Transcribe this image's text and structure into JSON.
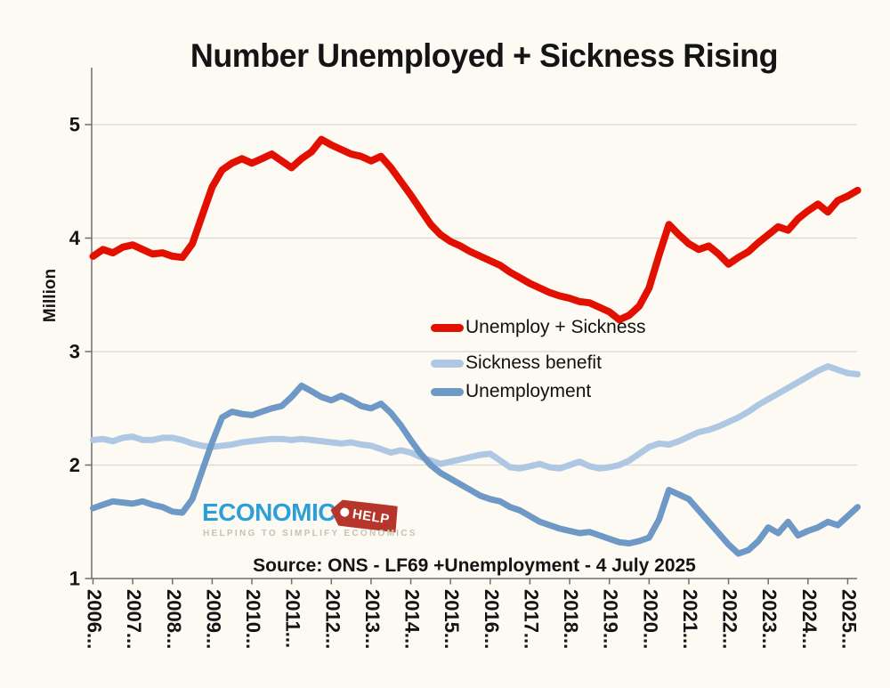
{
  "title": "Number Unemployed + Sickness Rising",
  "source_note": "Source: ONS - LF69 +Unemployment - 4 July 2025",
  "logo": {
    "brand": "ECONOMICS",
    "tag": "HELP",
    "tagline": "HELPING TO SIMPLIFY ECONOMICS",
    "brand_color": "#2d9fd8",
    "tag_color": "#b6362c"
  },
  "colors": {
    "background": "#fcfaf3",
    "axis": "#6e6e6e",
    "gridline": "#dbd8d0",
    "text": "#141414"
  },
  "chart_data": {
    "type": "line",
    "title": "Number Unemployed + Sickness Rising",
    "xlabel": "",
    "ylabel": "Million",
    "ylim": [
      1,
      5.5
    ],
    "yticks": [
      1,
      2,
      3,
      4,
      5
    ],
    "grid": "horizontal",
    "legend_position": "inside center-right, no border",
    "x_tick_labels": [
      "2006...",
      "2007...",
      "2008...",
      "2009...",
      "2010...",
      "2011...",
      "2012...",
      "2013...",
      "2014...",
      "2015...",
      "2016...",
      "2017...",
      "2018...",
      "2019...",
      "2020...",
      "2021...",
      "2022...",
      "2023...",
      "2024...",
      "2025..."
    ],
    "x": [
      2006,
      2006.25,
      2006.5,
      2006.75,
      2007,
      2007.25,
      2007.5,
      2007.75,
      2008,
      2008.25,
      2008.5,
      2008.75,
      2009,
      2009.25,
      2009.5,
      2009.75,
      2010,
      2010.25,
      2010.5,
      2010.75,
      2011,
      2011.25,
      2011.5,
      2011.75,
      2012,
      2012.25,
      2012.5,
      2012.75,
      2013,
      2013.25,
      2013.5,
      2013.75,
      2014,
      2014.25,
      2014.5,
      2014.75,
      2015,
      2015.25,
      2015.5,
      2015.75,
      2016,
      2016.25,
      2016.5,
      2016.75,
      2017,
      2017.25,
      2017.5,
      2017.75,
      2018,
      2018.25,
      2018.5,
      2018.75,
      2019,
      2019.25,
      2019.5,
      2019.75,
      2020,
      2020.25,
      2020.5,
      2020.75,
      2021,
      2021.25,
      2021.5,
      2021.75,
      2022,
      2022.25,
      2022.5,
      2022.75,
      2023,
      2023.25,
      2023.5,
      2023.75,
      2024,
      2024.25,
      2024.5,
      2024.75,
      2025,
      2025.25
    ],
    "series": [
      {
        "name": "Unemploy + Sickness",
        "color": "#e21000",
        "stroke_width": 8,
        "values": [
          3.84,
          3.9,
          3.87,
          3.92,
          3.94,
          3.9,
          3.86,
          3.87,
          3.84,
          3.83,
          3.95,
          4.2,
          4.45,
          4.6,
          4.66,
          4.7,
          4.66,
          4.7,
          4.74,
          4.68,
          4.62,
          4.7,
          4.76,
          4.87,
          4.82,
          4.78,
          4.74,
          4.72,
          4.68,
          4.72,
          4.62,
          4.5,
          4.38,
          4.25,
          4.12,
          4.03,
          3.97,
          3.93,
          3.88,
          3.84,
          3.8,
          3.76,
          3.7,
          3.65,
          3.6,
          3.56,
          3.52,
          3.49,
          3.47,
          3.44,
          3.43,
          3.39,
          3.35,
          3.28,
          3.32,
          3.4,
          3.56,
          3.85,
          4.12,
          4.03,
          3.95,
          3.9,
          3.93,
          3.86,
          3.77,
          3.83,
          3.88,
          3.96,
          4.03,
          4.1,
          4.07,
          4.17,
          4.24,
          4.3,
          4.23,
          4.33,
          4.37,
          4.42
        ]
      },
      {
        "name": "Sickness benefit",
        "color": "#aec7e3",
        "stroke_width": 7,
        "values": [
          2.22,
          2.23,
          2.21,
          2.24,
          2.25,
          2.22,
          2.22,
          2.24,
          2.24,
          2.22,
          2.19,
          2.17,
          2.16,
          2.17,
          2.18,
          2.2,
          2.21,
          2.22,
          2.23,
          2.23,
          2.22,
          2.23,
          2.22,
          2.21,
          2.2,
          2.19,
          2.2,
          2.18,
          2.17,
          2.14,
          2.11,
          2.13,
          2.11,
          2.07,
          2.04,
          2.01,
          2.03,
          2.05,
          2.07,
          2.09,
          2.1,
          2.04,
          1.98,
          1.97,
          1.99,
          2.01,
          1.98,
          1.97,
          2.0,
          2.03,
          1.99,
          1.97,
          1.98,
          2.0,
          2.04,
          2.1,
          2.16,
          2.19,
          2.18,
          2.21,
          2.25,
          2.29,
          2.31,
          2.34,
          2.38,
          2.42,
          2.47,
          2.53,
          2.58,
          2.63,
          2.68,
          2.73,
          2.78,
          2.83,
          2.87,
          2.84,
          2.81,
          2.8
        ]
      },
      {
        "name": "Unemployment",
        "color": "#6e98c5",
        "stroke_width": 7,
        "values": [
          1.62,
          1.65,
          1.68,
          1.67,
          1.66,
          1.68,
          1.65,
          1.63,
          1.59,
          1.58,
          1.7,
          1.95,
          2.2,
          2.42,
          2.47,
          2.45,
          2.44,
          2.47,
          2.5,
          2.52,
          2.6,
          2.7,
          2.65,
          2.6,
          2.57,
          2.61,
          2.57,
          2.52,
          2.5,
          2.54,
          2.46,
          2.35,
          2.22,
          2.1,
          2.0,
          1.93,
          1.88,
          1.83,
          1.78,
          1.73,
          1.7,
          1.68,
          1.63,
          1.6,
          1.55,
          1.5,
          1.47,
          1.44,
          1.42,
          1.4,
          1.41,
          1.38,
          1.35,
          1.32,
          1.31,
          1.33,
          1.36,
          1.52,
          1.78,
          1.74,
          1.7,
          1.6,
          1.5,
          1.4,
          1.3,
          1.22,
          1.25,
          1.33,
          1.45,
          1.4,
          1.5,
          1.38,
          1.42,
          1.45,
          1.5,
          1.47,
          1.55,
          1.63
        ]
      }
    ]
  }
}
